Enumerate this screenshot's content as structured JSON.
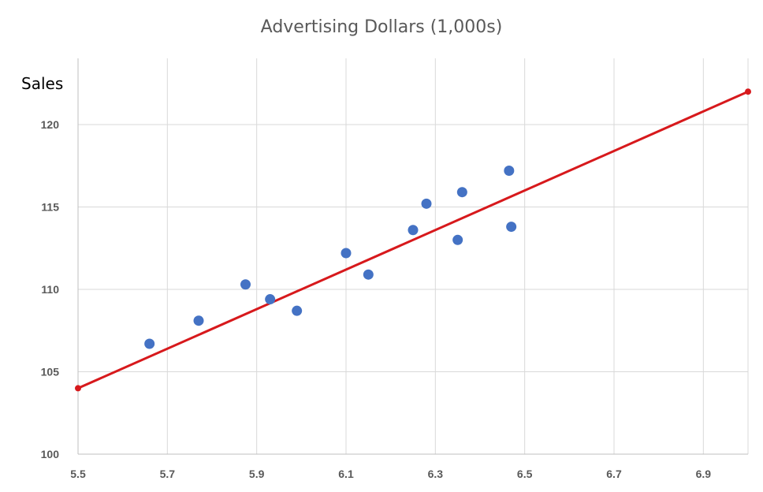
{
  "chart_data": {
    "type": "scatter",
    "title": "Advertising Dollars (1,000s)",
    "xlabel": "",
    "ylabel": "Sales",
    "xlim": [
      5.5,
      7.0
    ],
    "ylim": [
      100,
      122
    ],
    "x_ticks": [
      "5.5",
      "5.7",
      "5.9",
      "6.1",
      "6.3",
      "6.5",
      "6.7",
      "6.9"
    ],
    "y_ticks": [
      "100",
      "105",
      "110",
      "115",
      "120"
    ],
    "grid": true,
    "legend": "none",
    "series": [
      {
        "kind": "points",
        "color": "#4472C4",
        "x": [
          5.66,
          5.77,
          5.875,
          5.93,
          5.99,
          6.1,
          6.15,
          6.25,
          6.28,
          6.35,
          6.36,
          6.465,
          6.47
        ],
        "y": [
          106.7,
          108.1,
          110.3,
          109.4,
          108.7,
          112.2,
          110.9,
          113.6,
          115.2,
          113.0,
          115.9,
          117.2,
          113.8
        ]
      },
      {
        "kind": "trendline",
        "color": "#D7191C",
        "x": [
          5.5,
          7.0
        ],
        "y": [
          104.0,
          122.0
        ]
      }
    ]
  }
}
